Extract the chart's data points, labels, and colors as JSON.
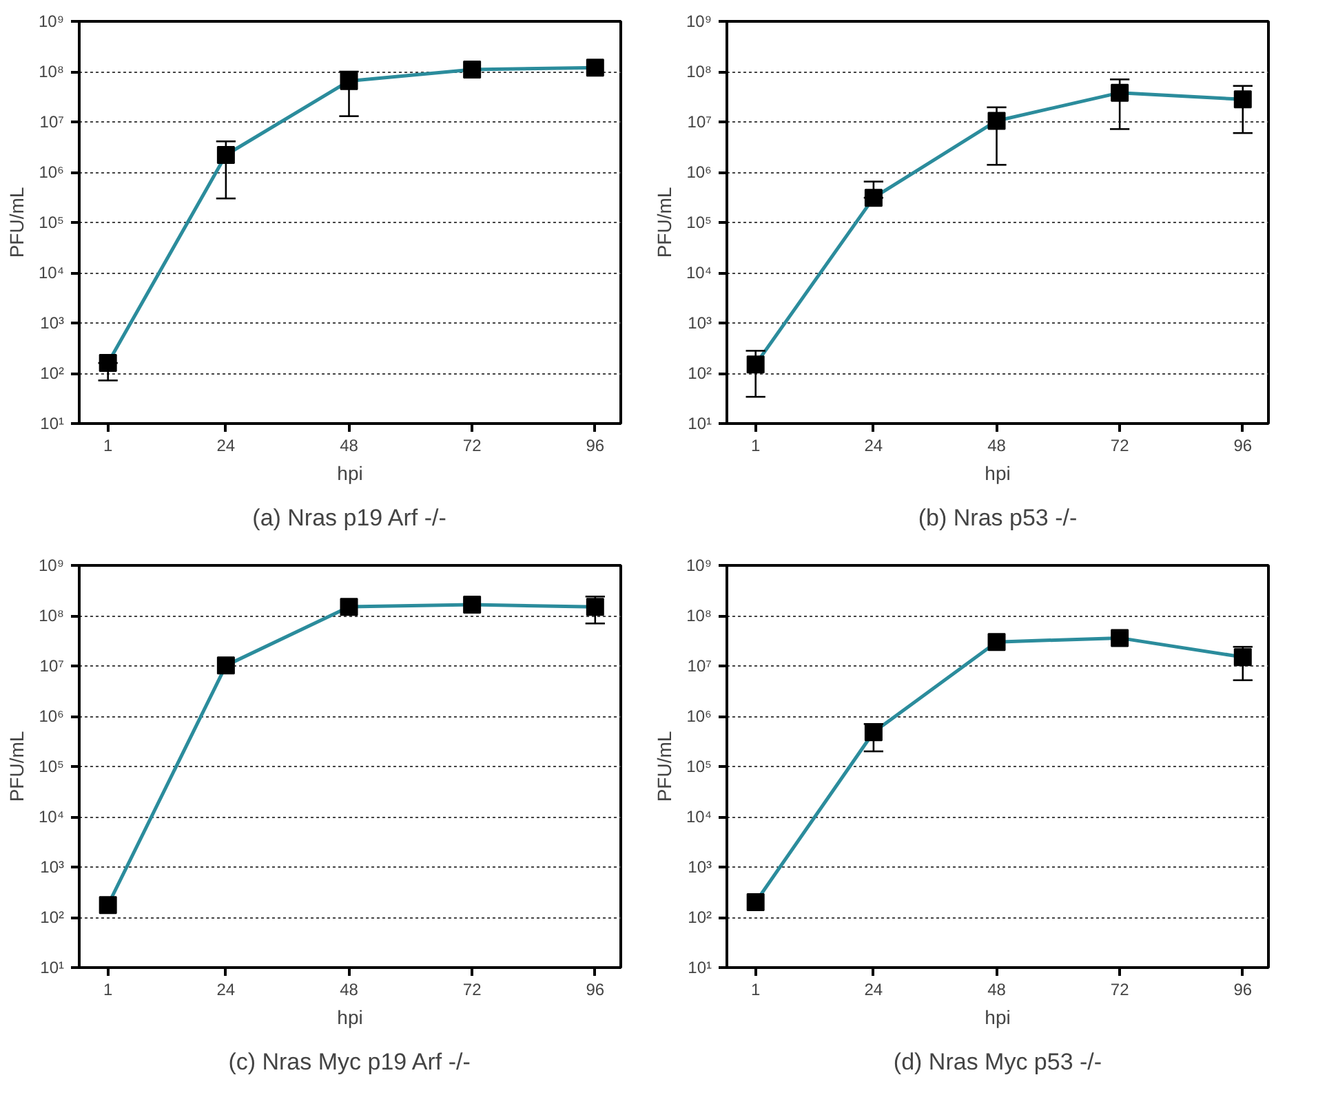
{
  "chart_data": [
    {
      "type": "line",
      "title": "(a) Nras p19 Arf -/-",
      "xlabel": "hpi",
      "ylabel": "PFU/mL",
      "log": "y",
      "grid": "y",
      "marker": "square",
      "line_style": "solid",
      "x": [
        1,
        24,
        48,
        72,
        96
      ],
      "xlim": [
        -4.6,
        101
      ],
      "xticks": [
        1,
        24,
        48,
        72,
        96
      ],
      "ylim": [
        10,
        1000000000
      ],
      "yticks": [
        {
          "value": 10,
          "label": "10¹"
        },
        {
          "value": 100,
          "label": "10²"
        },
        {
          "value": 1000,
          "label": "10³"
        },
        {
          "value": 10000,
          "label": "10⁴"
        },
        {
          "value": 100000,
          "label": "10⁵"
        },
        {
          "value": 1000000,
          "label": "10⁶"
        },
        {
          "value": 10000000,
          "label": "10⁷"
        },
        {
          "value": 100000000,
          "label": "10⁸"
        },
        {
          "value": 1000000000,
          "label": "10⁹"
        }
      ],
      "series": [
        {
          "color": "#2b8c9c",
          "values": [
            160,
            2200000,
            65000000,
            110000000,
            120000000
          ],
          "errors": [
            [
              72,
              160
            ],
            [
              300000,
              4100000
            ],
            [
              13000000,
              100000000
            ],
            null,
            null
          ]
        }
      ]
    },
    {
      "type": "line",
      "title": "(b) Nras p53 -/-",
      "xlabel": "hpi",
      "ylabel": "PFU/mL",
      "log": "y",
      "grid": "y",
      "marker": "square",
      "line_style": "solid",
      "x": [
        1,
        24,
        48,
        72,
        96
      ],
      "xlim": [
        -4.6,
        101
      ],
      "xticks": [
        1,
        24,
        48,
        72,
        96
      ],
      "ylim": [
        10,
        1000000000
      ],
      "yticks": [
        {
          "value": 10,
          "label": "10¹"
        },
        {
          "value": 100,
          "label": "10²"
        },
        {
          "value": 1000,
          "label": "10³"
        },
        {
          "value": 10000,
          "label": "10⁴"
        },
        {
          "value": 100000,
          "label": "10⁵"
        },
        {
          "value": 1000000,
          "label": "10⁶"
        },
        {
          "value": 10000000,
          "label": "10⁷"
        },
        {
          "value": 100000000,
          "label": "10⁸"
        },
        {
          "value": 1000000000,
          "label": "10⁹"
        }
      ],
      "series": [
        {
          "color": "#2b8c9c",
          "values": [
            150,
            310000,
            10500000,
            38000000,
            28000000
          ],
          "errors": [
            [
              34,
              280
            ],
            [
              310000,
              650000
            ],
            [
              1400000,
              19500000
            ],
            [
              7200000,
              70000000
            ],
            [
              6000000,
              52000000
            ]
          ]
        }
      ]
    },
    {
      "type": "line",
      "title": "(c) Nras Myc p19 Arf -/-",
      "xlabel": "hpi",
      "ylabel": "PFU/mL",
      "log": "y",
      "grid": "y",
      "marker": "square",
      "line_style": "solid",
      "x": [
        1,
        24,
        48,
        72,
        96
      ],
      "xlim": [
        -4.6,
        101
      ],
      "xticks": [
        1,
        24,
        48,
        72,
        96
      ],
      "ylim": [
        10,
        1000000000
      ],
      "yticks": [
        {
          "value": 10,
          "label": "10¹"
        },
        {
          "value": 100,
          "label": "10²"
        },
        {
          "value": 1000,
          "label": "10³"
        },
        {
          "value": 10000,
          "label": "10⁴"
        },
        {
          "value": 100000,
          "label": "10⁵"
        },
        {
          "value": 1000000,
          "label": "10⁶"
        },
        {
          "value": 10000000,
          "label": "10⁷"
        },
        {
          "value": 100000000,
          "label": "10⁸"
        },
        {
          "value": 1000000000,
          "label": "10⁹"
        }
      ],
      "series": [
        {
          "color": "#2b8c9c",
          "values": [
            175,
            10200000,
            150000000,
            165000000,
            150000000
          ],
          "errors": [
            null,
            null,
            null,
            null,
            [
              70000000,
              240000000
            ]
          ]
        }
      ]
    },
    {
      "type": "line",
      "title": "(d) Nras Myc p53 -/-",
      "xlabel": "hpi",
      "ylabel": "PFU/mL",
      "log": "y",
      "grid": "y",
      "marker": "square",
      "line_style": "solid",
      "x": [
        1,
        24,
        48,
        72,
        96
      ],
      "xlim": [
        -4.6,
        101
      ],
      "xticks": [
        1,
        24,
        48,
        72,
        96
      ],
      "ylim": [
        10,
        1000000000
      ],
      "yticks": [
        {
          "value": 10,
          "label": "10¹"
        },
        {
          "value": 100,
          "label": "10²"
        },
        {
          "value": 1000,
          "label": "10³"
        },
        {
          "value": 10000,
          "label": "10⁴"
        },
        {
          "value": 100000,
          "label": "10⁵"
        },
        {
          "value": 1000000,
          "label": "10⁶"
        },
        {
          "value": 10000000,
          "label": "10⁷"
        },
        {
          "value": 100000000,
          "label": "10⁸"
        },
        {
          "value": 1000000000,
          "label": "10⁹"
        }
      ],
      "series": [
        {
          "color": "#2b8c9c",
          "values": [
            200,
            480000,
            30000000,
            36000000,
            15000000
          ],
          "errors": [
            null,
            [
              200000,
              700000
            ],
            null,
            null,
            [
              5200000,
              24000000
            ]
          ]
        }
      ]
    }
  ]
}
